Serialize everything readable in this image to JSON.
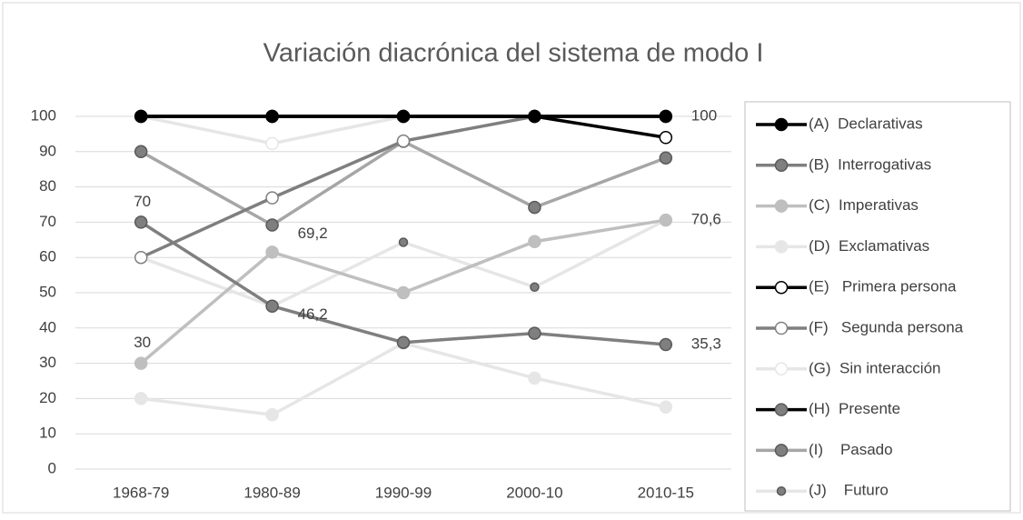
{
  "chart_data": {
    "type": "line",
    "title": "Variación diacrónica del sistema de modo I",
    "categories": [
      "1968-79",
      "1980-89",
      "1990-99",
      "2000-10",
      "2010-15"
    ],
    "ylim": [
      0,
      100
    ],
    "yticks": [
      0,
      10,
      20,
      30,
      40,
      50,
      60,
      70,
      80,
      90,
      100
    ],
    "grid": true,
    "legend": "right",
    "series": [
      {
        "name": "(A)  Declarativas",
        "color": "#000000",
        "marker_color": "#000000",
        "values": [
          100,
          100,
          100,
          100,
          100
        ]
      },
      {
        "name": "(B)  Interrogativas",
        "color": "#7f7f7f",
        "marker_color": "#7f7f7f",
        "values": [
          70,
          46.2,
          35.9,
          38.5,
          35.3
        ],
        "value_labels": [
          "70",
          "46,2",
          null,
          null,
          "35,3"
        ]
      },
      {
        "name": "(C)  Imperativas",
        "color": "#bfbfbf",
        "marker_color": "#bfbfbf",
        "values": [
          30,
          61.5,
          50,
          64.5,
          70.6
        ],
        "value_labels": [
          "30",
          null,
          null,
          null,
          "70,6"
        ]
      },
      {
        "name": "(D)  Exclamativas",
        "color": "#e6e6e6",
        "marker_color": "#e6e6e6",
        "values": [
          20,
          15.4,
          35.7,
          25.8,
          17.6
        ]
      },
      {
        "name": "(E)   Primera persona",
        "color": "#000000",
        "marker_color": "#ffffff",
        "values": [
          100,
          100,
          100,
          100,
          94
        ]
      },
      {
        "name": "(F)   Segunda persona",
        "color": "#7f7f7f",
        "marker_color": "#ffffff",
        "values": [
          60,
          76.9,
          93,
          100,
          100
        ]
      },
      {
        "name": "(G)  Sin interacción",
        "color": "#e6e6e6",
        "marker_color": "#ffffff",
        "values": [
          100,
          92.3,
          100,
          100,
          100
        ]
      },
      {
        "name": "(H)  Presente",
        "color": "#000000",
        "marker_color": "#7f7f7f",
        "values": [
          100,
          100,
          100,
          100,
          100
        ],
        "value_labels": [
          null,
          null,
          null,
          null,
          "100"
        ]
      },
      {
        "name": "(I)    Pasado",
        "color": "#a6a6a6",
        "marker_color": "#7f7f7f",
        "values": [
          90,
          69.2,
          92.9,
          74.2,
          88.2
        ],
        "value_labels": [
          null,
          "69,2",
          null,
          null,
          null
        ]
      },
      {
        "name": "(J)    Futuro",
        "color": "#e6e6e6",
        "marker_color": "#7f7f7f",
        "marker": "small",
        "values": [
          60,
          46.2,
          64.3,
          51.6,
          70.6
        ]
      }
    ]
  }
}
